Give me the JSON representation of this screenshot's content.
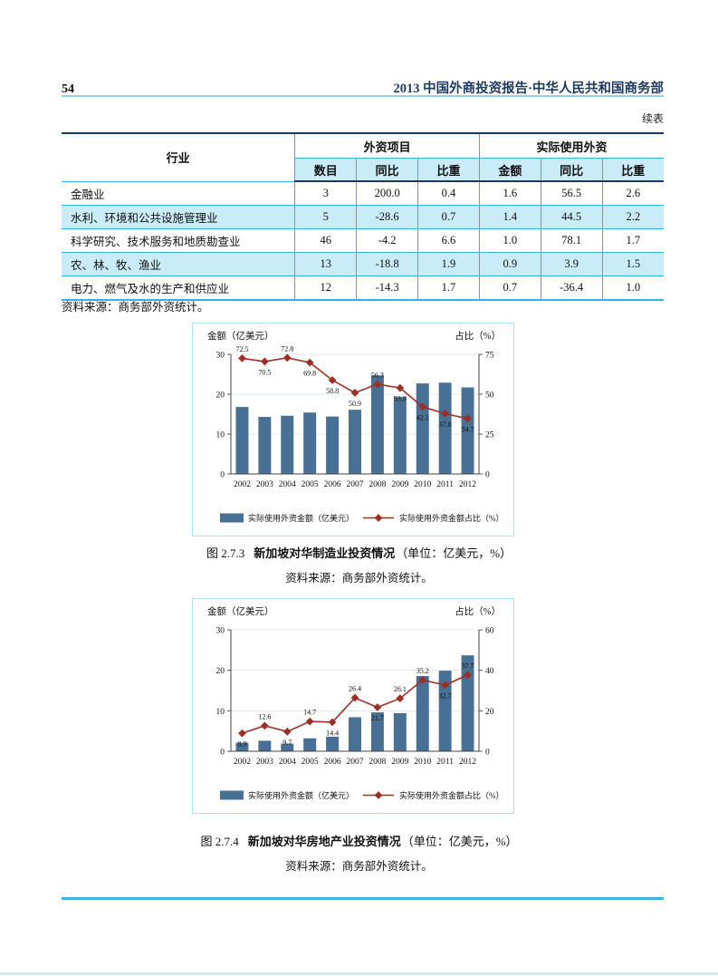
{
  "page": {
    "number": "54",
    "header_title": "2013 中国外商投资报告·中华人民共和国商务部",
    "continued_label": "续表"
  },
  "table": {
    "col_industry": "行业",
    "group1": "外资项目",
    "group2": "实际使用外资",
    "subheaders": [
      "数目",
      "同比",
      "比重",
      "金额",
      "同比",
      "比重"
    ],
    "rows": [
      {
        "label": "金融业",
        "values": [
          "3",
          "200.0",
          "0.4",
          "1.6",
          "56.5",
          "2.6"
        ]
      },
      {
        "label": "水利、环境和公共设施管理业",
        "values": [
          "5",
          "-28.6",
          "0.7",
          "1.4",
          "44.5",
          "2.2"
        ]
      },
      {
        "label": "科学研究、技术服务和地质勘查业",
        "values": [
          "46",
          "-4.2",
          "6.6",
          "1.0",
          "78.1",
          "1.7"
        ]
      },
      {
        "label": "农、林、牧、渔业",
        "values": [
          "13",
          "-18.8",
          "1.9",
          "0.9",
          "3.9",
          "1.5"
        ]
      },
      {
        "label": "电力、燃气及水的生产和供应业",
        "values": [
          "12",
          "-14.3",
          "1.7",
          "0.7",
          "-36.4",
          "1.0"
        ]
      }
    ],
    "source": "资料来源：商务部外资统计。"
  },
  "colors": {
    "bar": "#486f94",
    "line": "#9c2f28",
    "table_row_blue": "#c9ecf8",
    "table_border_blue": "#35b0e2",
    "header_rule_blue": "#8fd2ee",
    "title_navy": "#1e3a5f"
  },
  "chart_data": [
    {
      "type": "bar",
      "title": "新加坡对华制造业投资情况",
      "caption_prefix": "图 2.7.3",
      "caption_title": "新加坡对华制造业投资情况",
      "caption_unit": "（单位：亿美元，%）",
      "source": "资料来源：商务部外资统计。",
      "left_axis_label": "金额（亿美元）",
      "right_axis_label": "占比（%）",
      "left_ticks": [
        0,
        10,
        20,
        30
      ],
      "right_ticks": [
        0,
        25,
        50,
        75
      ],
      "categories": [
        "2002",
        "2003",
        "2004",
        "2005",
        "2006",
        "2007",
        "2008",
        "2009",
        "2010",
        "2011",
        "2012"
      ],
      "bar_series": {
        "name": "实际使用外资金额（亿美元）",
        "values": [
          16.8,
          14.3,
          14.6,
          15.4,
          14.4,
          16.1,
          24.7,
          19.3,
          22.7,
          22.9,
          21.7
        ]
      },
      "line_series": {
        "name": "实际使用外资金额占比（%）",
        "values": [
          72.5,
          70.5,
          72.8,
          69.8,
          58.8,
          50.9,
          56.3,
          53.9,
          42.1,
          37.8,
          34.7
        ],
        "label_positions": [
          "above",
          "below",
          "above",
          "below",
          "below",
          "below",
          "above",
          "below",
          "below",
          "below",
          "below"
        ]
      },
      "legend_position": "bottom",
      "grid": true
    },
    {
      "type": "bar",
      "title": "新加坡对华房地产业投资情况",
      "caption_prefix": "图 2.7.4",
      "caption_title": "新加坡对华房地产业投资情况",
      "caption_unit": "（单位：亿美元，%）",
      "source": "资料来源：商务部外资统计。",
      "left_axis_label": "金额（亿美元）",
      "right_axis_label": "占比（%）",
      "left_ticks": [
        0,
        10,
        20,
        30
      ],
      "right_ticks": [
        0,
        20,
        40,
        60
      ],
      "categories": [
        "2002",
        "2003",
        "2004",
        "2005",
        "2006",
        "2007",
        "2008",
        "2009",
        "2010",
        "2011",
        "2012"
      ],
      "bar_series": {
        "name": "实际使用外资金额（亿美元）",
        "values": [
          2.1,
          2.6,
          1.9,
          3.2,
          3.6,
          8.4,
          9.6,
          9.4,
          18.6,
          19.9,
          23.7
        ]
      },
      "line_series": {
        "name": "实际使用外资金额占比（%）",
        "values": [
          8.9,
          12.6,
          9.7,
          14.7,
          14.4,
          26.4,
          21.7,
          26.1,
          35.2,
          32.7,
          37.7
        ],
        "label_positions": [
          "below",
          "above",
          "below",
          "above",
          "below",
          "above",
          "below",
          "above",
          "above",
          "below",
          "above"
        ]
      },
      "legend_position": "bottom",
      "grid": true
    }
  ]
}
